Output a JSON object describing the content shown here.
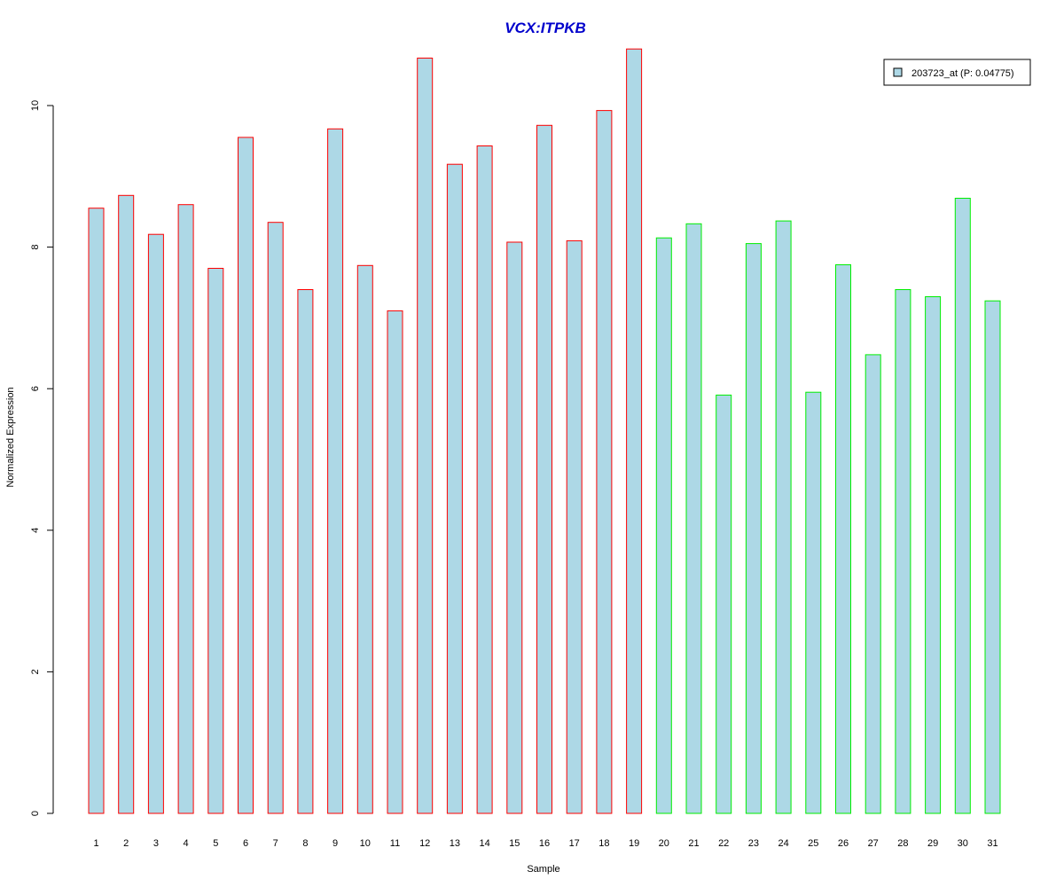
{
  "chart_data": {
    "type": "bar",
    "title": "VCX:ITPKB",
    "xlabel": "Sample",
    "ylabel": "Normalized Expression",
    "ylim": [
      0,
      10.8
    ],
    "yticks": [
      0,
      2,
      4,
      6,
      8,
      10
    ],
    "grid": false,
    "legend_position": "top-right",
    "colors": {
      "title": "#0000cc",
      "bar_fill": "#add8e6",
      "group1_border": "#ff0000",
      "group2_border": "#00ee00",
      "axis": "#000000"
    },
    "categories": [
      "1",
      "2",
      "3",
      "4",
      "5",
      "6",
      "7",
      "8",
      "9",
      "10",
      "11",
      "12",
      "13",
      "14",
      "15",
      "16",
      "17",
      "18",
      "19",
      "20",
      "21",
      "22",
      "23",
      "24",
      "25",
      "26",
      "27",
      "28",
      "29",
      "30",
      "31"
    ],
    "series": [
      {
        "name": "203723_at (P: 0.04775)",
        "values": [
          8.55,
          8.73,
          8.18,
          8.6,
          7.7,
          9.55,
          8.35,
          7.4,
          9.67,
          7.74,
          7.1,
          10.67,
          9.17,
          9.43,
          8.07,
          9.72,
          8.09,
          9.93,
          10.8,
          8.13,
          8.33,
          5.91,
          8.05,
          8.37,
          5.95,
          7.75,
          6.48,
          7.4,
          7.3,
          8.69,
          7.24
        ],
        "groups": [
          1,
          1,
          1,
          1,
          1,
          1,
          1,
          1,
          1,
          1,
          1,
          1,
          1,
          1,
          1,
          1,
          1,
          1,
          1,
          2,
          2,
          2,
          2,
          2,
          2,
          2,
          2,
          2,
          2,
          2,
          2
        ]
      }
    ]
  }
}
